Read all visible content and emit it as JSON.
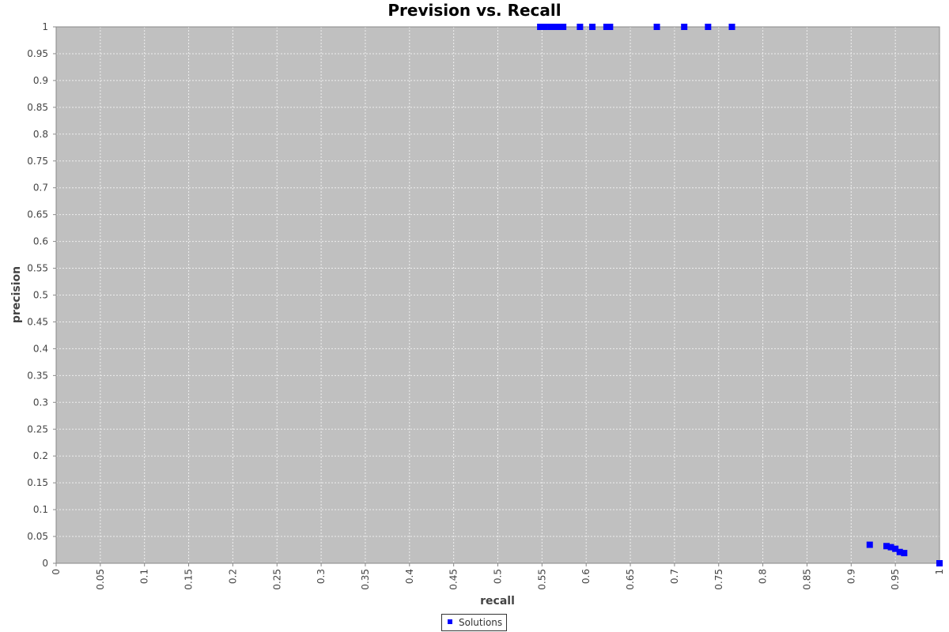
{
  "chart_data": {
    "type": "scatter",
    "title": "Prevision vs. Recall",
    "xlabel": "recall",
    "ylabel": "precision",
    "xlim": [
      0,
      1
    ],
    "ylim": [
      0,
      1
    ],
    "x_ticks": [
      "0",
      "0.05",
      "0.1",
      "0.15",
      "0.2",
      "0.25",
      "0.3",
      "0.35",
      "0.4",
      "0.45",
      "0.5",
      "0.55",
      "0.6",
      "0.65",
      "0.7",
      "0.75",
      "0.8",
      "0.85",
      "0.9",
      "0.95",
      "1"
    ],
    "y_ticks": [
      "0",
      "0.05",
      "0.1",
      "0.15",
      "0.2",
      "0.25",
      "0.3",
      "0.35",
      "0.4",
      "0.45",
      "0.5",
      "0.55",
      "0.6",
      "0.65",
      "0.7",
      "0.75",
      "0.8",
      "0.85",
      "0.9",
      "0.95",
      "1"
    ],
    "grid": true,
    "legend_position": "bottom-center",
    "series": [
      {
        "name": "Solutions",
        "color": "#0000ff",
        "marker": "square",
        "points": [
          {
            "x": 0.548,
            "y": 1.0
          },
          {
            "x": 0.553,
            "y": 1.0
          },
          {
            "x": 0.56,
            "y": 1.0
          },
          {
            "x": 0.565,
            "y": 1.0
          },
          {
            "x": 0.569,
            "y": 1.0
          },
          {
            "x": 0.574,
            "y": 1.0
          },
          {
            "x": 0.593,
            "y": 1.0
          },
          {
            "x": 0.607,
            "y": 1.0
          },
          {
            "x": 0.623,
            "y": 1.0
          },
          {
            "x": 0.627,
            "y": 1.0
          },
          {
            "x": 0.68,
            "y": 1.0
          },
          {
            "x": 0.711,
            "y": 1.0
          },
          {
            "x": 0.738,
            "y": 1.0
          },
          {
            "x": 0.765,
            "y": 1.0
          },
          {
            "x": 0.921,
            "y": 0.0345
          },
          {
            "x": 0.94,
            "y": 0.032
          },
          {
            "x": 0.945,
            "y": 0.03
          },
          {
            "x": 0.95,
            "y": 0.027
          },
          {
            "x": 0.955,
            "y": 0.021
          },
          {
            "x": 0.96,
            "y": 0.019
          },
          {
            "x": 1.0,
            "y": 0.0
          }
        ]
      }
    ],
    "colors": {
      "plot_background": "#c0c0c0",
      "gridline": "#eeeeee",
      "axis_line": "#888888"
    }
  }
}
